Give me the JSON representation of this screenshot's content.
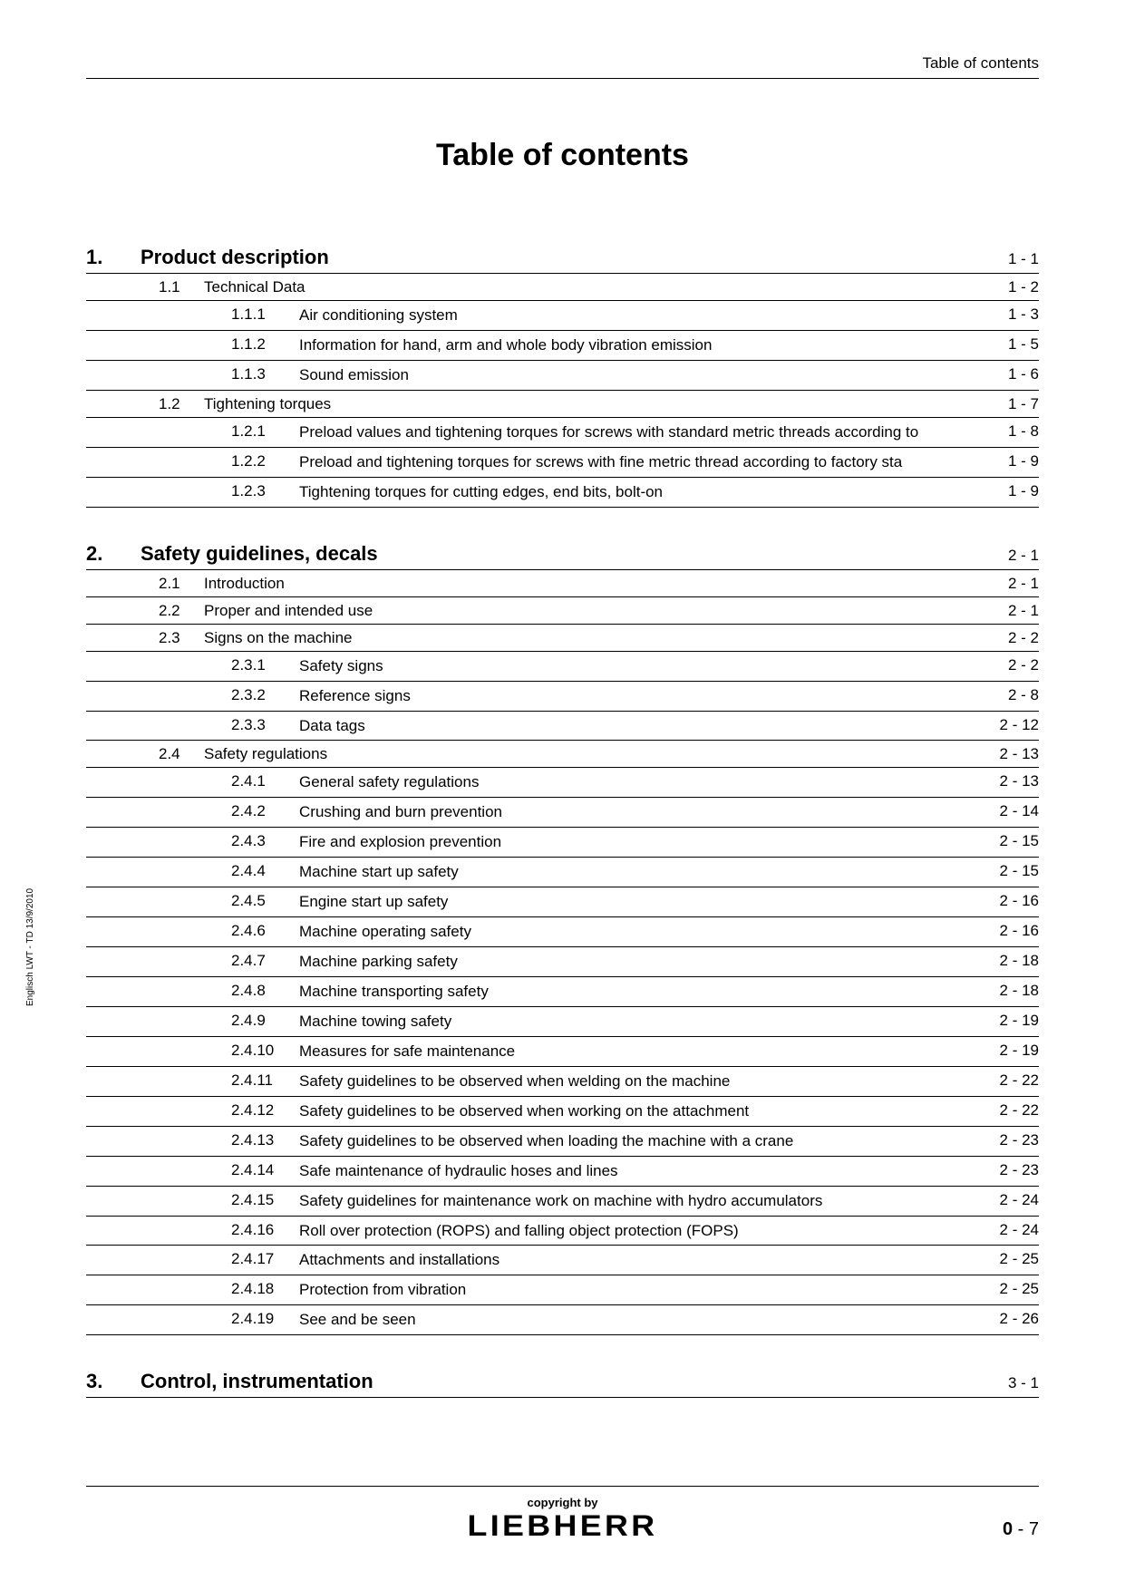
{
  "header": {
    "right": "Table of contents"
  },
  "title": "Table of contents",
  "side_text": "Englisch  LWT - TD 13/9/2010",
  "footer": {
    "copyright": "copyright by",
    "brand": "LIEBHERR",
    "page_big": "0",
    "page_sep": " - ",
    "page_small": "7"
  },
  "chapters": [
    {
      "num": "1.",
      "title": "Product description",
      "page": "1 - 1",
      "sections": [
        {
          "num": "1.1",
          "title": "Technical Data",
          "page": "1 - 2",
          "subs": [
            {
              "num": "1.1.1",
              "title": "Air conditioning system",
              "page": "1 - 3"
            },
            {
              "num": "1.1.2",
              "title": "Information for hand, arm and whole body vibration emission",
              "page": "1 - 5"
            },
            {
              "num": "1.1.3",
              "title": "Sound emission",
              "page": "1 - 6"
            }
          ]
        },
        {
          "num": "1.2",
          "title": "Tightening torques",
          "page": "1 - 7",
          "subs": [
            {
              "num": "1.2.1",
              "title": "Preload values and tightening torques for screws with standard metric threads according to",
              "page": "1 - 8"
            },
            {
              "num": "1.2.2",
              "title": "Preload and tightening torques for screws with fine metric thread according to factory sta",
              "page": "1 - 9"
            },
            {
              "num": "1.2.3",
              "title": "Tightening torques for cutting edges, end bits, bolt-on",
              "page": "1 - 9"
            }
          ]
        }
      ]
    },
    {
      "num": "2.",
      "title": "Safety guidelines, decals",
      "page": "2 - 1",
      "sections": [
        {
          "num": "2.1",
          "title": "Introduction",
          "page": "2 - 1",
          "subs": []
        },
        {
          "num": "2.2",
          "title": "Proper and intended use",
          "page": "2 - 1",
          "subs": []
        },
        {
          "num": "2.3",
          "title": "Signs on the machine",
          "page": "2 - 2",
          "subs": [
            {
              "num": "2.3.1",
              "title": "Safety signs",
              "page": "2 - 2"
            },
            {
              "num": "2.3.2",
              "title": "Reference signs",
              "page": "2 - 8"
            },
            {
              "num": "2.3.3",
              "title": "Data tags",
              "page": "2 - 12"
            }
          ]
        },
        {
          "num": "2.4",
          "title": "Safety regulations",
          "page": "2 - 13",
          "subs": [
            {
              "num": "2.4.1",
              "title": "General safety regulations",
              "page": "2 - 13"
            },
            {
              "num": "2.4.2",
              "title": "Crushing and burn prevention",
              "page": "2 - 14"
            },
            {
              "num": "2.4.3",
              "title": "Fire and explosion prevention",
              "page": "2 - 15"
            },
            {
              "num": "2.4.4",
              "title": "Machine start up safety",
              "page": "2 - 15"
            },
            {
              "num": "2.4.5",
              "title": "Engine start up safety",
              "page": "2 - 16"
            },
            {
              "num": "2.4.6",
              "title": "Machine operating safety",
              "page": "2 - 16"
            },
            {
              "num": "2.4.7",
              "title": "Machine parking safety",
              "page": "2 - 18"
            },
            {
              "num": "2.4.8",
              "title": "Machine transporting safety",
              "page": "2 - 18"
            },
            {
              "num": "2.4.9",
              "title": "Machine towing safety",
              "page": "2 - 19"
            },
            {
              "num": "2.4.10",
              "title": "Measures for safe maintenance",
              "page": "2 - 19"
            },
            {
              "num": "2.4.11",
              "title": "Safety guidelines to be observed when welding on the machine",
              "page": "2 - 22"
            },
            {
              "num": "2.4.12",
              "title": "Safety guidelines to be observed when working on the attachment",
              "page": "2 - 22"
            },
            {
              "num": "2.4.13",
              "title": "Safety guidelines to be observed when loading the machine with a crane",
              "page": "2 - 23"
            },
            {
              "num": "2.4.14",
              "title": "Safe maintenance of hydraulic hoses and lines",
              "page": "2 - 23"
            },
            {
              "num": "2.4.15",
              "title": "Safety guidelines for maintenance work on machine with hydro accumulators",
              "page": "2 - 24"
            },
            {
              "num": "2.4.16",
              "title": "Roll over protection (ROPS) and falling object protection (FOPS)",
              "page": "2 - 24"
            },
            {
              "num": "2.4.17",
              "title": "Attachments and installations",
              "page": "2 - 25"
            },
            {
              "num": "2.4.18",
              "title": "Protection from vibration",
              "page": "2 - 25"
            },
            {
              "num": "2.4.19",
              "title": "See and be seen",
              "page": "2 - 26"
            }
          ]
        }
      ]
    },
    {
      "num": "3.",
      "title": "Control, instrumentation",
      "page": "3 - 1",
      "sections": []
    }
  ]
}
